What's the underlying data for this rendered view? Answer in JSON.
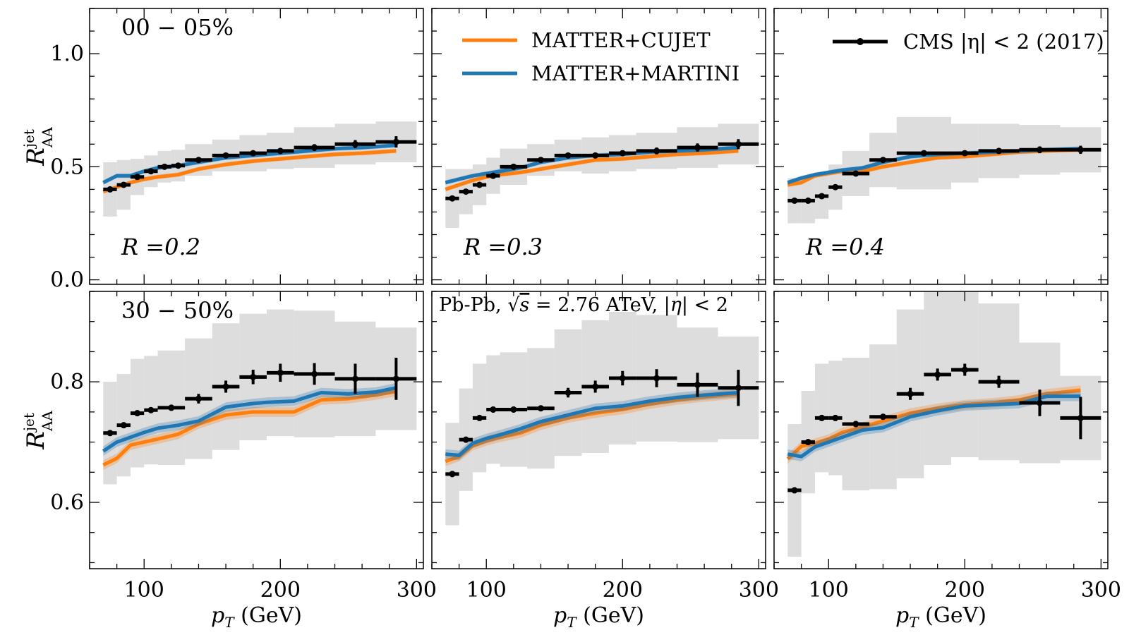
{
  "colors": {
    "cujet": "#ff7f0e",
    "martini": "#1f77b4",
    "cms": "#000000",
    "systematics": "#dddddd"
  },
  "labels": {
    "xlabel_var": "p",
    "xlabel_sub": "T",
    "xlabel_unit": " (GeV)",
    "ylabel_var": "R",
    "ylabel_sup": "jet",
    "ylabel_sub": "AA",
    "note_pre": "Pb-Pb, ",
    "note_sqrt": "s",
    "note_post": " = 2.76 ATeV, |",
    "note_eta": "η",
    "note_end": "| < 2"
  },
  "legend": [
    {
      "key": "cujet",
      "label": "MATTER+CUJET"
    },
    {
      "key": "martini",
      "label": "MATTER+MARTINI"
    },
    {
      "key": "cms",
      "label": "CMS |η| < 2 (2017)"
    }
  ],
  "chart_data": [
    {
      "type": "line",
      "row": 0,
      "col": 0,
      "centrality": "00 − 05%",
      "radius_label": "R =0.2",
      "xlim": [
        60,
        305
      ],
      "ylim": [
        -0.02,
        1.2
      ],
      "xticks": [
        100,
        200,
        300
      ],
      "yticks": [
        0.0,
        0.5,
        1.0
      ],
      "ytick_labels": [
        "0.0",
        "0.5",
        "1.0"
      ],
      "cms": [
        {
          "x": 75,
          "y": 0.4,
          "dx": 5,
          "ey": 0.012,
          "sys": 0.12
        },
        {
          "x": 85,
          "y": 0.42,
          "dx": 5,
          "ey": 0.012,
          "sys": 0.11
        },
        {
          "x": 95,
          "y": 0.455,
          "dx": 5,
          "ey": 0.01,
          "sys": 0.08
        },
        {
          "x": 105,
          "y": 0.48,
          "dx": 5,
          "ey": 0.01,
          "sys": 0.07
        },
        {
          "x": 115,
          "y": 0.5,
          "dx": 5,
          "ey": 0.01,
          "sys": 0.07
        },
        {
          "x": 125,
          "y": 0.505,
          "dx": 5,
          "ey": 0.01,
          "sys": 0.07
        },
        {
          "x": 140,
          "y": 0.53,
          "dx": 10,
          "ey": 0.01,
          "sys": 0.07
        },
        {
          "x": 160,
          "y": 0.55,
          "dx": 10,
          "ey": 0.01,
          "sys": 0.07
        },
        {
          "x": 180,
          "y": 0.56,
          "dx": 10,
          "ey": 0.01,
          "sys": 0.08
        },
        {
          "x": 200,
          "y": 0.57,
          "dx": 10,
          "ey": 0.012,
          "sys": 0.08
        },
        {
          "x": 225,
          "y": 0.585,
          "dx": 15,
          "ey": 0.015,
          "sys": 0.09
        },
        {
          "x": 255,
          "y": 0.6,
          "dx": 15,
          "ey": 0.018,
          "sys": 0.09
        },
        {
          "x": 285,
          "y": 0.61,
          "dx": 15,
          "ey": 0.025,
          "sys": 0.09
        }
      ],
      "cujet": {
        "x": [
          70,
          80,
          90,
          100,
          110,
          125,
          140,
          160,
          180,
          200,
          220,
          240,
          260,
          285
        ],
        "y": [
          0.39,
          0.41,
          0.43,
          0.445,
          0.455,
          0.465,
          0.49,
          0.51,
          0.525,
          0.535,
          0.545,
          0.555,
          0.56,
          0.57
        ],
        "band": 0.01
      },
      "martini": {
        "x": [
          70,
          80,
          90,
          100,
          110,
          125,
          140,
          160,
          180,
          200,
          220,
          240,
          260,
          285
        ],
        "y": [
          0.43,
          0.46,
          0.46,
          0.48,
          0.495,
          0.505,
          0.52,
          0.54,
          0.55,
          0.56,
          0.57,
          0.58,
          0.585,
          0.595
        ],
        "band": 0.01
      }
    },
    {
      "type": "line",
      "row": 0,
      "col": 1,
      "centrality": "",
      "radius_label": "R =0.3",
      "xlim": [
        60,
        305
      ],
      "ylim": [
        -0.02,
        1.2
      ],
      "xticks": [
        100,
        200,
        300
      ],
      "yticks": [
        0.0,
        0.5,
        1.0
      ],
      "ytick_labels": [
        "",
        "",
        ""
      ],
      "cms": [
        {
          "x": 75,
          "y": 0.36,
          "dx": 5,
          "ey": 0.012,
          "sys": 0.13
        },
        {
          "x": 85,
          "y": 0.39,
          "dx": 5,
          "ey": 0.012,
          "sys": 0.1
        },
        {
          "x": 95,
          "y": 0.42,
          "dx": 5,
          "ey": 0.01,
          "sys": 0.09
        },
        {
          "x": 105,
          "y": 0.46,
          "dx": 5,
          "ey": 0.01,
          "sys": 0.08
        },
        {
          "x": 120,
          "y": 0.5,
          "dx": 10,
          "ey": 0.01,
          "sys": 0.08
        },
        {
          "x": 140,
          "y": 0.53,
          "dx": 10,
          "ey": 0.01,
          "sys": 0.07
        },
        {
          "x": 160,
          "y": 0.55,
          "dx": 10,
          "ey": 0.01,
          "sys": 0.07
        },
        {
          "x": 180,
          "y": 0.55,
          "dx": 10,
          "ey": 0.01,
          "sys": 0.08
        },
        {
          "x": 200,
          "y": 0.56,
          "dx": 10,
          "ey": 0.012,
          "sys": 0.08
        },
        {
          "x": 225,
          "y": 0.57,
          "dx": 15,
          "ey": 0.015,
          "sys": 0.08
        },
        {
          "x": 255,
          "y": 0.585,
          "dx": 15,
          "ey": 0.018,
          "sys": 0.09
        },
        {
          "x": 285,
          "y": 0.6,
          "dx": 15,
          "ey": 0.022,
          "sys": 0.09
        }
      ],
      "cujet": {
        "x": [
          70,
          80,
          90,
          100,
          110,
          125,
          140,
          160,
          180,
          200,
          220,
          240,
          260,
          285
        ],
        "y": [
          0.4,
          0.42,
          0.44,
          0.455,
          0.465,
          0.475,
          0.49,
          0.51,
          0.53,
          0.535,
          0.545,
          0.555,
          0.56,
          0.57
        ],
        "band": 0.01
      },
      "martini": {
        "x": [
          70,
          80,
          90,
          100,
          110,
          125,
          140,
          160,
          180,
          200,
          220,
          240,
          260,
          285
        ],
        "y": [
          0.43,
          0.445,
          0.46,
          0.47,
          0.48,
          0.495,
          0.52,
          0.54,
          0.55,
          0.555,
          0.565,
          0.57,
          0.575,
          0.585
        ],
        "band": 0.01
      }
    },
    {
      "type": "line",
      "row": 0,
      "col": 2,
      "centrality": "",
      "radius_label": "R =0.4",
      "xlim": [
        60,
        305
      ],
      "ylim": [
        -0.02,
        1.2
      ],
      "xticks": [
        100,
        200,
        300
      ],
      "yticks": [
        0.0,
        0.5,
        1.0
      ],
      "ytick_labels": [
        "",
        "",
        ""
      ],
      "cms": [
        {
          "x": 75,
          "y": 0.35,
          "dx": 5,
          "ey": 0.012,
          "sys": 0.1
        },
        {
          "x": 85,
          "y": 0.35,
          "dx": 5,
          "ey": 0.012,
          "sys": 0.1
        },
        {
          "x": 95,
          "y": 0.37,
          "dx": 5,
          "ey": 0.01,
          "sys": 0.1
        },
        {
          "x": 105,
          "y": 0.41,
          "dx": 5,
          "ey": 0.01,
          "sys": 0.1
        },
        {
          "x": 120,
          "y": 0.47,
          "dx": 10,
          "ey": 0.012,
          "sys": 0.1
        },
        {
          "x": 140,
          "y": 0.53,
          "dx": 10,
          "ey": 0.012,
          "sys": 0.12
        },
        {
          "x": 170,
          "y": 0.56,
          "dx": 20,
          "ey": 0.012,
          "sys": 0.16
        },
        {
          "x": 200,
          "y": 0.56,
          "dx": 10,
          "ey": 0.012,
          "sys": 0.13
        },
        {
          "x": 225,
          "y": 0.57,
          "dx": 15,
          "ey": 0.012,
          "sys": 0.12
        },
        {
          "x": 255,
          "y": 0.575,
          "dx": 15,
          "ey": 0.015,
          "sys": 0.11
        },
        {
          "x": 285,
          "y": 0.575,
          "dx": 15,
          "ey": 0.018,
          "sys": 0.1
        }
      ],
      "cujet": {
        "x": [
          70,
          80,
          90,
          100,
          110,
          125,
          140,
          160,
          180,
          200,
          220,
          240,
          260,
          285
        ],
        "y": [
          0.42,
          0.43,
          0.46,
          0.47,
          0.48,
          0.48,
          0.5,
          0.52,
          0.54,
          0.545,
          0.555,
          0.565,
          0.57,
          0.575
        ],
        "band": 0.01
      },
      "martini": {
        "x": [
          70,
          80,
          90,
          100,
          110,
          125,
          140,
          160,
          180,
          200,
          220,
          240,
          260,
          285
        ],
        "y": [
          0.43,
          0.45,
          0.465,
          0.475,
          0.485,
          0.495,
          0.52,
          0.545,
          0.555,
          0.56,
          0.565,
          0.57,
          0.575,
          0.58
        ],
        "band": 0.01
      }
    },
    {
      "type": "line",
      "row": 1,
      "col": 0,
      "centrality": "30 − 50%",
      "radius_label": "",
      "xlim": [
        60,
        305
      ],
      "ylim": [
        0.49,
        0.95
      ],
      "xticks": [
        100,
        200,
        300
      ],
      "xtick_labels": [
        "100",
        "200",
        "300"
      ],
      "yticks": [
        0.6,
        0.8
      ],
      "ytick_labels": [
        "0.6",
        "0.8"
      ],
      "cms": [
        {
          "x": 75,
          "y": 0.715,
          "dx": 5,
          "ey": 0.005,
          "sys": 0.085
        },
        {
          "x": 85,
          "y": 0.728,
          "dx": 5,
          "ey": 0.005,
          "sys": 0.085
        },
        {
          "x": 95,
          "y": 0.748,
          "dx": 5,
          "ey": 0.005,
          "sys": 0.09
        },
        {
          "x": 105,
          "y": 0.753,
          "dx": 5,
          "ey": 0.005,
          "sys": 0.09
        },
        {
          "x": 120,
          "y": 0.757,
          "dx": 10,
          "ey": 0.005,
          "sys": 0.095
        },
        {
          "x": 140,
          "y": 0.772,
          "dx": 10,
          "ey": 0.008,
          "sys": 0.1
        },
        {
          "x": 160,
          "y": 0.792,
          "dx": 10,
          "ey": 0.01,
          "sys": 0.105
        },
        {
          "x": 180,
          "y": 0.808,
          "dx": 10,
          "ey": 0.012,
          "sys": 0.105
        },
        {
          "x": 200,
          "y": 0.815,
          "dx": 10,
          "ey": 0.015,
          "sys": 0.105
        },
        {
          "x": 225,
          "y": 0.813,
          "dx": 15,
          "ey": 0.018,
          "sys": 0.105
        },
        {
          "x": 255,
          "y": 0.805,
          "dx": 15,
          "ey": 0.025,
          "sys": 0.095
        },
        {
          "x": 285,
          "y": 0.805,
          "dx": 15,
          "ey": 0.035,
          "sys": 0.085
        }
      ],
      "cujet": {
        "x": [
          70,
          80,
          90,
          100,
          110,
          125,
          140,
          160,
          180,
          190,
          210,
          230,
          250,
          270,
          285
        ],
        "y": [
          0.662,
          0.673,
          0.695,
          0.7,
          0.705,
          0.713,
          0.73,
          0.745,
          0.75,
          0.75,
          0.75,
          0.77,
          0.772,
          0.778,
          0.784
        ],
        "band": 0.008
      },
      "martini": {
        "x": [
          70,
          80,
          90,
          100,
          110,
          125,
          140,
          160,
          180,
          190,
          210,
          230,
          250,
          270,
          285
        ],
        "y": [
          0.685,
          0.7,
          0.708,
          0.716,
          0.723,
          0.728,
          0.735,
          0.758,
          0.764,
          0.766,
          0.768,
          0.782,
          0.78,
          0.783,
          0.79
        ],
        "band": 0.008
      }
    },
    {
      "type": "line",
      "row": 1,
      "col": 1,
      "centrality": "",
      "radius_label": "",
      "xlim": [
        60,
        305
      ],
      "ylim": [
        0.49,
        0.95
      ],
      "xticks": [
        100,
        200,
        300
      ],
      "xtick_labels": [
        "100",
        "200",
        "300"
      ],
      "yticks": [
        0.6,
        0.8
      ],
      "ytick_labels": [
        "",
        ""
      ],
      "cms": [
        {
          "x": 75,
          "y": 0.647,
          "dx": 5,
          "ey": 0.005,
          "sys": 0.085
        },
        {
          "x": 85,
          "y": 0.704,
          "dx": 5,
          "ey": 0.005,
          "sys": 0.085
        },
        {
          "x": 95,
          "y": 0.74,
          "dx": 5,
          "ey": 0.005,
          "sys": 0.09
        },
        {
          "x": 105,
          "y": 0.754,
          "dx": 5,
          "ey": 0.005,
          "sys": 0.09
        },
        {
          "x": 120,
          "y": 0.754,
          "dx": 10,
          "ey": 0.005,
          "sys": 0.095
        },
        {
          "x": 140,
          "y": 0.756,
          "dx": 10,
          "ey": 0.005,
          "sys": 0.1
        },
        {
          "x": 160,
          "y": 0.782,
          "dx": 10,
          "ey": 0.008,
          "sys": 0.105
        },
        {
          "x": 180,
          "y": 0.792,
          "dx": 10,
          "ey": 0.01,
          "sys": 0.11
        },
        {
          "x": 200,
          "y": 0.806,
          "dx": 10,
          "ey": 0.012,
          "sys": 0.11
        },
        {
          "x": 225,
          "y": 0.806,
          "dx": 15,
          "ey": 0.015,
          "sys": 0.105
        },
        {
          "x": 255,
          "y": 0.795,
          "dx": 15,
          "ey": 0.02,
          "sys": 0.095
        },
        {
          "x": 285,
          "y": 0.79,
          "dx": 15,
          "ey": 0.03,
          "sys": 0.085
        }
      ],
      "cujet": {
        "x": [
          70,
          80,
          90,
          100,
          110,
          125,
          140,
          160,
          180,
          200,
          220,
          240,
          260,
          285
        ],
        "y": [
          0.668,
          0.676,
          0.694,
          0.702,
          0.708,
          0.715,
          0.728,
          0.74,
          0.748,
          0.754,
          0.763,
          0.77,
          0.775,
          0.78
        ],
        "band": 0.008
      },
      "martini": {
        "x": [
          70,
          80,
          90,
          100,
          110,
          125,
          140,
          160,
          180,
          200,
          220,
          240,
          260,
          285
        ],
        "y": [
          0.68,
          0.678,
          0.698,
          0.706,
          0.712,
          0.722,
          0.734,
          0.745,
          0.756,
          0.76,
          0.768,
          0.774,
          0.778,
          0.782
        ],
        "band": 0.008
      }
    },
    {
      "type": "line",
      "row": 1,
      "col": 2,
      "centrality": "",
      "radius_label": "",
      "xlim": [
        60,
        305
      ],
      "ylim": [
        0.49,
        0.95
      ],
      "xticks": [
        100,
        200,
        300
      ],
      "xtick_labels": [
        "100",
        "200",
        "300"
      ],
      "yticks": [
        0.6,
        0.8
      ],
      "ytick_labels": [
        "",
        ""
      ],
      "cms": [
        {
          "x": 75,
          "y": 0.62,
          "dx": 5,
          "ey": 0.005,
          "sys": 0.11
        },
        {
          "x": 85,
          "y": 0.7,
          "dx": 5,
          "ey": 0.005,
          "sys": 0.085
        },
        {
          "x": 95,
          "y": 0.74,
          "dx": 5,
          "ey": 0.005,
          "sys": 0.09
        },
        {
          "x": 105,
          "y": 0.74,
          "dx": 5,
          "ey": 0.005,
          "sys": 0.095
        },
        {
          "x": 120,
          "y": 0.73,
          "dx": 10,
          "ey": 0.005,
          "sys": 0.11
        },
        {
          "x": 140,
          "y": 0.742,
          "dx": 10,
          "ey": 0.005,
          "sys": 0.12
        },
        {
          "x": 160,
          "y": 0.78,
          "dx": 10,
          "ey": 0.01,
          "sys": 0.14
        },
        {
          "x": 180,
          "y": 0.812,
          "dx": 10,
          "ey": 0.01,
          "sys": 0.15
        },
        {
          "x": 200,
          "y": 0.82,
          "dx": 10,
          "ey": 0.01,
          "sys": 0.145
        },
        {
          "x": 225,
          "y": 0.8,
          "dx": 15,
          "ey": 0.01,
          "sys": 0.13
        },
        {
          "x": 255,
          "y": 0.765,
          "dx": 15,
          "ey": 0.022,
          "sys": 0.1
        },
        {
          "x": 285,
          "y": 0.74,
          "dx": 15,
          "ey": 0.035,
          "sys": 0.07
        }
      ],
      "cujet": {
        "x": [
          70,
          80,
          90,
          100,
          110,
          125,
          140,
          160,
          180,
          200,
          220,
          240,
          260,
          285
        ],
        "y": [
          0.672,
          0.693,
          0.698,
          0.705,
          0.716,
          0.725,
          0.735,
          0.748,
          0.756,
          0.762,
          0.765,
          0.77,
          0.78,
          0.786
        ],
        "band": 0.008
      },
      "martini": {
        "x": [
          70,
          80,
          90,
          100,
          110,
          125,
          140,
          160,
          180,
          200,
          220,
          240,
          260,
          285
        ],
        "y": [
          0.68,
          0.676,
          0.692,
          0.7,
          0.708,
          0.72,
          0.724,
          0.742,
          0.752,
          0.76,
          0.762,
          0.764,
          0.776,
          0.776
        ],
        "band": 0.008
      }
    }
  ]
}
